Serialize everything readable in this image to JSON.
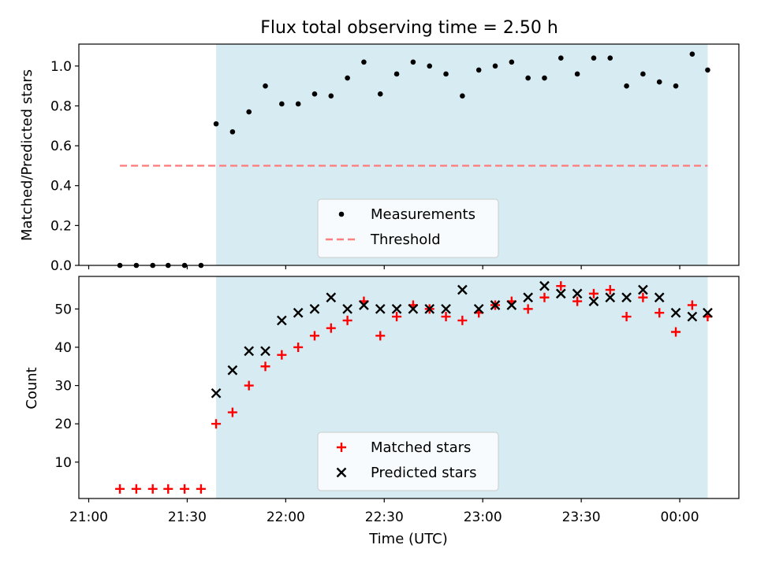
{
  "title": "Flux total observing time = 2.50 h",
  "colors": {
    "shade": "#add8e6",
    "measurement": "#000000",
    "threshold": "#ff7f7f",
    "matched": "#ff0000",
    "predicted": "#000000"
  },
  "chart_data": [
    {
      "type": "scatter",
      "ylabel": "Matched/Predicted stars",
      "xlabel": "",
      "ylim": [
        0,
        1.11
      ],
      "yticks": [
        "0.0",
        "0.2",
        "0.4",
        "0.6",
        "0.8",
        "1.0"
      ],
      "shaded_interval_min": [
        38.8,
        188.5
      ],
      "threshold_value": 0.5,
      "threshold_x_range_min": [
        9.5,
        188.5
      ],
      "legend_position": "lower center",
      "series": [
        {
          "name": "Measurements",
          "marker": "dot",
          "x_min": [
            9.5,
            14.5,
            19.5,
            24.2,
            29.2,
            34.2,
            38.8,
            43.8,
            48.8,
            53.8,
            58.8,
            63.8,
            68.8,
            73.8,
            78.8,
            83.8,
            88.8,
            93.8,
            98.8,
            103.8,
            108.8,
            113.8,
            118.8,
            123.8,
            128.8,
            133.8,
            138.8,
            143.8,
            148.8,
            153.8,
            158.8,
            163.8,
            168.8,
            173.8,
            178.8,
            183.8,
            188.5
          ],
          "y": [
            0.0,
            0.0,
            0.0,
            0.0,
            0.0,
            0.0,
            0.71,
            0.67,
            0.77,
            0.9,
            0.81,
            0.81,
            0.86,
            0.85,
            0.94,
            1.02,
            0.86,
            0.96,
            1.02,
            1.0,
            0.96,
            0.85,
            0.98,
            1.0,
            1.02,
            0.94,
            0.94,
            1.04,
            0.96,
            1.04,
            1.04,
            0.9,
            0.96,
            0.92,
            0.9,
            1.06,
            0.98
          ]
        },
        {
          "name": "Threshold",
          "marker": "dashed-line"
        }
      ]
    },
    {
      "type": "scatter",
      "ylabel": "Count",
      "xlabel": "Time (UTC)",
      "ylim": [
        0.5,
        58.5
      ],
      "yticks": [
        "10",
        "20",
        "30",
        "40",
        "50"
      ],
      "xticks": [
        "21:00",
        "21:30",
        "22:00",
        "22:30",
        "23:00",
        "23:30",
        "00:00"
      ],
      "xticks_min": [
        0,
        30,
        60,
        90,
        120,
        150,
        180
      ],
      "xlim_min": [
        -3,
        198
      ],
      "legend_position": "lower center",
      "series": [
        {
          "name": "Matched stars",
          "marker": "plus",
          "x_min": [
            9.5,
            14.5,
            19.5,
            24.2,
            29.2,
            34.2,
            38.8,
            43.8,
            48.8,
            53.8,
            58.8,
            63.8,
            68.8,
            73.8,
            78.8,
            83.8,
            88.8,
            93.8,
            98.8,
            103.8,
            108.8,
            113.8,
            118.8,
            123.8,
            128.8,
            133.8,
            138.8,
            143.8,
            148.8,
            153.8,
            158.8,
            163.8,
            168.8,
            173.8,
            178.8,
            183.8,
            188.5
          ],
          "y": [
            3,
            3,
            3,
            3,
            3,
            3,
            20,
            23,
            30,
            35,
            38,
            40,
            43,
            45,
            47,
            52,
            43,
            48,
            51,
            50,
            48,
            47,
            49,
            51,
            52,
            50,
            53,
            56,
            52,
            54,
            55,
            48,
            53,
            49,
            44,
            51,
            48
          ]
        },
        {
          "name": "Predicted stars",
          "marker": "x",
          "x_min": [
            38.8,
            43.8,
            48.8,
            53.8,
            58.8,
            63.8,
            68.8,
            73.8,
            78.8,
            83.8,
            88.8,
            93.8,
            98.8,
            103.8,
            108.8,
            113.8,
            118.8,
            123.8,
            128.8,
            133.8,
            138.8,
            143.8,
            148.8,
            153.8,
            158.8,
            163.8,
            168.8,
            173.8,
            178.8,
            183.8,
            188.5
          ],
          "y": [
            28,
            34,
            39,
            39,
            47,
            49,
            50,
            53,
            50,
            51,
            50,
            50,
            50,
            50,
            50,
            55,
            50,
            51,
            51,
            53,
            56,
            54,
            54,
            52,
            53,
            53,
            55,
            53,
            49,
            48,
            49
          ]
        }
      ]
    }
  ]
}
